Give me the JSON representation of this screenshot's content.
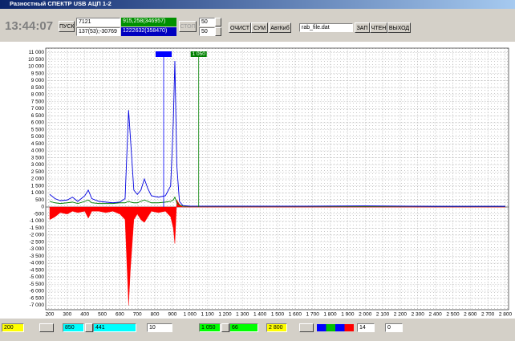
{
  "window": {
    "title": "Разностный СПЕКТР USB АЦП 1-2",
    "time": "13:44:07",
    "start": "ПУСК",
    "field1": "7121",
    "field2": "137(53);-30769",
    "green_field": "915,258(346957)",
    "blue_field": "1222632(358470)",
    "stop": "СТОП",
    "spin1": "50",
    "spin2": "50",
    "clear": "ОЧИСТ",
    "sum": "СУМ",
    "auto": "АвтКиб",
    "file": "rab_file.dat",
    "save": "ЗАП",
    "read": "ЧТЕН",
    "exit": "ВЫХОД",
    "bottom": {
      "from": "200",
      "cyan_width": "441",
      "step": "10",
      "green_width": "66",
      "to": "2 800",
      "spin_a": "14",
      "spin_b": "0"
    }
  },
  "chart_data": {
    "type": "line",
    "x": [
      200,
      230,
      260,
      300,
      330,
      360,
      400,
      420,
      440,
      480,
      520,
      560,
      600,
      630,
      650,
      660,
      680,
      700,
      720,
      740,
      760,
      780,
      820,
      860,
      890,
      905,
      914,
      925,
      940,
      960,
      1000,
      1200,
      1600,
      2000,
      2400,
      2800
    ],
    "series": [
      {
        "color": "#0000e0",
        "values": [
          900,
          600,
          450,
          500,
          700,
          400,
          800,
          1200,
          600,
          400,
          350,
          300,
          350,
          600,
          6900,
          5000,
          1200,
          900,
          1200,
          2000,
          1300,
          800,
          700,
          800,
          1500,
          6000,
          10400,
          3000,
          400,
          100,
          60,
          60,
          60,
          80,
          50,
          50
        ]
      },
      {
        "color": "#008000",
        "values": [
          400,
          300,
          250,
          300,
          350,
          250,
          400,
          500,
          300,
          250,
          250,
          250,
          300,
          300,
          400,
          350,
          300,
          300,
          400,
          500,
          400,
          300,
          300,
          350,
          400,
          500,
          700,
          300,
          150,
          60,
          50,
          50,
          50,
          50,
          40,
          40
        ]
      },
      {
        "color": "#ff0000",
        "fill": true,
        "values": [
          -900,
          -700,
          -400,
          -500,
          -300,
          -400,
          -300,
          -800,
          -300,
          -300,
          -400,
          -300,
          -500,
          -900,
          -7000,
          -4500,
          -900,
          -500,
          -900,
          -1100,
          -700,
          -300,
          -400,
          -300,
          -700,
          -1500,
          -2600,
          500,
          200,
          0,
          0,
          0,
          0,
          0,
          0,
          0
        ]
      }
    ],
    "cursors": [
      {
        "value": 850,
        "label": "850",
        "color": "#0000ff"
      },
      {
        "value": 1050,
        "label": "1 050",
        "color": "#008000"
      }
    ],
    "xlim": [
      200,
      2800
    ],
    "ylim": [
      -7000,
      11000
    ],
    "grid": true,
    "xticks": [
      200,
      300,
      400,
      500,
      600,
      700,
      800,
      900,
      {
        "value": 1000,
        "label": "1 000"
      },
      {
        "value": 1100,
        "label": "1 100"
      },
      {
        "value": 1200,
        "label": "1 200"
      },
      {
        "value": 1300,
        "label": "1 300"
      },
      {
        "value": 1400,
        "label": "1 400"
      },
      {
        "value": 1500,
        "label": "1 500"
      },
      {
        "value": 1600,
        "label": "1 600"
      },
      {
        "value": 1700,
        "label": "1 700"
      },
      {
        "value": 1800,
        "label": "1 800"
      },
      {
        "value": 1900,
        "label": "1 900"
      },
      {
        "value": 2000,
        "label": "2 000"
      },
      {
        "value": 2100,
        "label": "2 100"
      },
      {
        "value": 2200,
        "label": "2 200"
      },
      {
        "value": 2300,
        "label": "2 300"
      },
      {
        "value": 2400,
        "label": "2 400"
      },
      {
        "value": 2500,
        "label": "2 500"
      },
      {
        "value": 2600,
        "label": "2 600"
      },
      {
        "value": 2700,
        "label": "2 700"
      },
      {
        "value": 2800,
        "label": "2 800"
      }
    ],
    "yticks": [
      {
        "value": 11000,
        "label": "11 000"
      },
      {
        "value": 10500,
        "label": "10 500"
      },
      {
        "value": 10000,
        "label": "10 000"
      },
      {
        "value": 9500,
        "label": "9 500"
      },
      {
        "value": 9000,
        "label": "9 000"
      },
      {
        "value": 8500,
        "label": "8 500"
      },
      {
        "value": 8000,
        "label": "8 000"
      },
      {
        "value": 7500,
        "label": "7 500"
      },
      {
        "value": 7000,
        "label": "7 000"
      },
      {
        "value": 6500,
        "label": "6 500"
      },
      {
        "value": 6000,
        "label": "6 000"
      },
      {
        "value": 5500,
        "label": "5 500"
      },
      {
        "value": 5000,
        "label": "5 000"
      },
      {
        "value": 4500,
        "label": "4 500"
      },
      {
        "value": 4000,
        "label": "4 000"
      },
      {
        "value": 3500,
        "label": "3 500"
      },
      {
        "value": 3000,
        "label": "3 000"
      },
      {
        "value": 2500,
        "label": "2 500"
      },
      {
        "value": 2000,
        "label": "2 000"
      },
      {
        "value": 1500,
        "label": "1 500"
      },
      {
        "value": 1000,
        "label": "1 000"
      },
      500,
      0,
      -500,
      {
        "value": -1000,
        "label": "-1 000"
      },
      {
        "value": -1500,
        "label": "-1 500"
      },
      {
        "value": -2000,
        "label": "-2 000"
      },
      {
        "value": -2500,
        "label": "-2 500"
      },
      {
        "value": -3000,
        "label": "-3 000"
      },
      {
        "value": -3500,
        "label": "-3 500"
      },
      {
        "value": -4000,
        "label": "-4 000"
      },
      {
        "value": -4500,
        "label": "-4 500"
      },
      {
        "value": -5000,
        "label": "-5 000"
      },
      {
        "value": -5500,
        "label": "-5 500"
      },
      {
        "value": -6000,
        "label": "-6 000"
      },
      {
        "value": -6500,
        "label": "-6 500"
      },
      {
        "value": -7000,
        "label": "-7 000"
      }
    ]
  }
}
